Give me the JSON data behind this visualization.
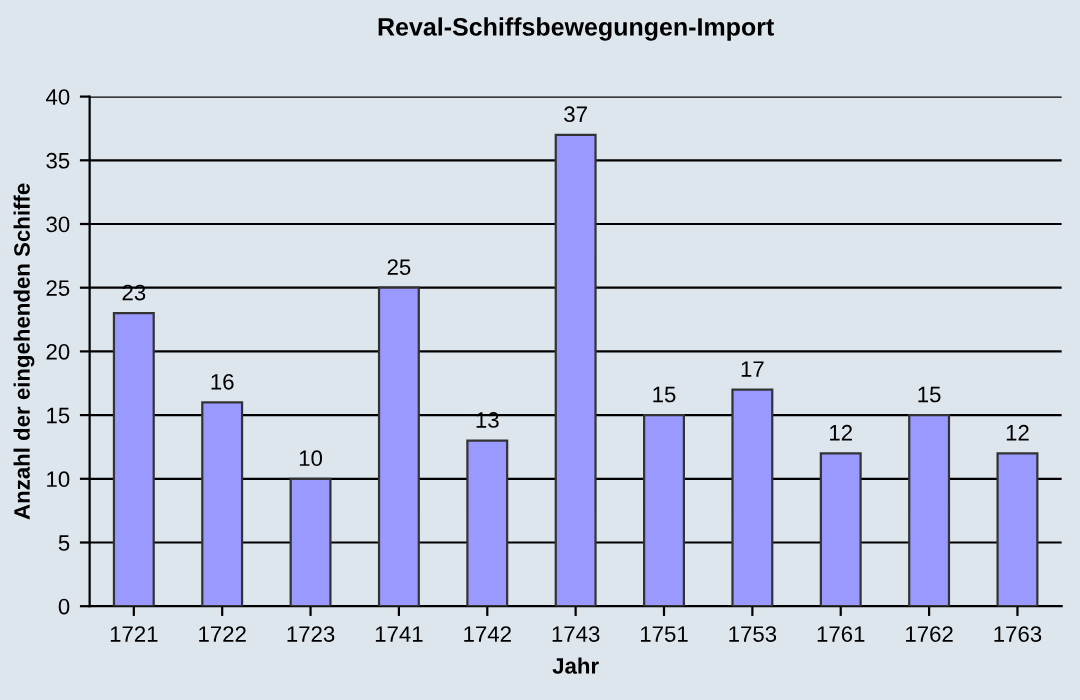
{
  "chart_data": {
    "type": "bar",
    "title": "Reval-Schiffsbewegungen-Import",
    "xlabel": "Jahr",
    "ylabel": "Anzahl der eingehenden Schiffe",
    "categories": [
      "1721",
      "1722",
      "1723",
      "1741",
      "1742",
      "1743",
      "1751",
      "1753",
      "1761",
      "1762",
      "1763"
    ],
    "values": [
      23,
      16,
      10,
      25,
      13,
      37,
      15,
      17,
      12,
      15,
      12
    ],
    "color": "#9999ff",
    "ylim": [
      0,
      40
    ],
    "yticks": [
      0,
      5,
      10,
      15,
      20,
      25,
      30,
      35,
      40
    ],
    "grid": "y",
    "data_labels": true
  }
}
